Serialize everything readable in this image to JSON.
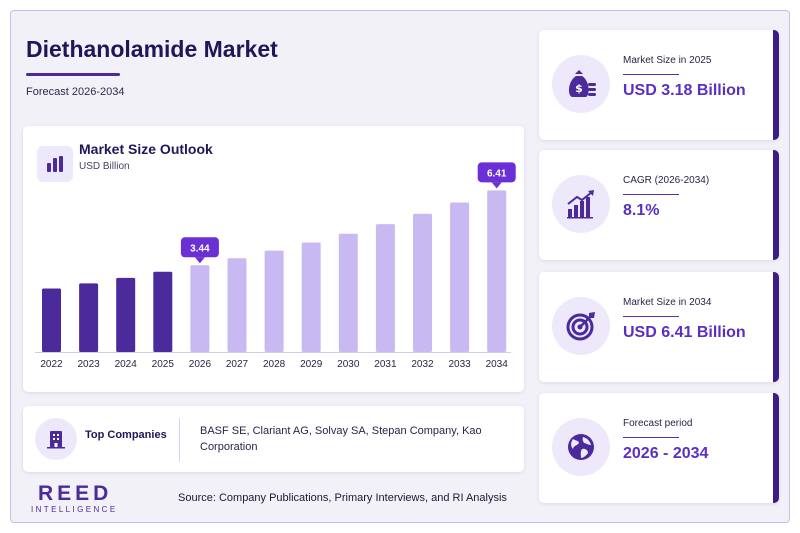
{
  "header": {
    "title": "Diethanolamide Market",
    "subtitle": "Forecast 2026-2034"
  },
  "colors": {
    "historical_bar": "#4b2a9b",
    "forecast_bar": "#c9b9f2",
    "callout": "#6b2fd6",
    "accent": "#5b2fc0"
  },
  "chart_data": {
    "type": "bar",
    "title": "Market Size Outlook",
    "unit": "USD Billion",
    "categories": [
      "2022",
      "2023",
      "2024",
      "2025",
      "2026",
      "2027",
      "2028",
      "2029",
      "2030",
      "2031",
      "2032",
      "2033",
      "2034"
    ],
    "values": [
      2.52,
      2.72,
      2.94,
      3.18,
      3.44,
      3.72,
      4.02,
      4.34,
      4.69,
      5.07,
      5.48,
      5.93,
      6.41
    ],
    "historical_until": "2025",
    "data_labels": [
      {
        "category": "2026",
        "text": "3.44"
      },
      {
        "category": "2034",
        "text": "6.41"
      }
    ],
    "ylim": [
      0,
      6.9
    ],
    "grid": false,
    "icon": "bar-chart-icon"
  },
  "companies": {
    "label": "Top Companies",
    "list": "BASF SE, Clariant AG, Solvay SA, Stepan Company, Kao Corporation",
    "icon": "building-icon"
  },
  "stats": [
    {
      "label": "Market Size in 2025",
      "value": "USD 3.18 Billion",
      "icon": "money-bag-icon"
    },
    {
      "label": "CAGR (2026-2034)",
      "value": "8.1%",
      "icon": "growth-chart-icon"
    },
    {
      "label": "Market Size in 2034",
      "value": "USD 6.41 Billion",
      "icon": "target-icon"
    },
    {
      "label": "Forecast period",
      "value": "2026 - 2034",
      "icon": "globe-icon"
    }
  ],
  "footer": {
    "logo_main": "REED",
    "logo_sub": "INTELLIGENCE",
    "source": "Source: Company Publications, Primary Interviews, and RI Analysis"
  }
}
